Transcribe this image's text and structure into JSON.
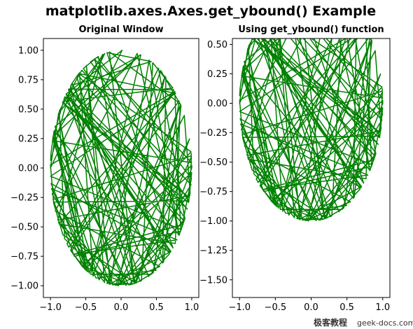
{
  "figure_title": "matplotlib.axes.Axes.get_ybound() Example",
  "watermark": {
    "brand": "极客教程",
    "site": "geek-docs.com"
  },
  "colors": {
    "line": "#008000",
    "axes_edge": "#000000",
    "background": "#ffffff"
  },
  "chart_data": [
    {
      "type": "line",
      "title": "Original Window",
      "xlabel": "",
      "ylabel": "",
      "xlim": [
        -1.1,
        1.1
      ],
      "ylim": [
        -1.1,
        1.1
      ],
      "xticks": [
        -1.0,
        -0.5,
        0.0,
        0.5,
        1.0
      ],
      "xtick_labels": [
        "−1.0",
        "−0.5",
        "0.0",
        "0.5",
        "1.0"
      ],
      "yticks": [
        -1.0,
        -0.75,
        -0.5,
        -0.25,
        0.0,
        0.25,
        0.5,
        0.75,
        1.0
      ],
      "ytick_labels": [
        "−1.00",
        "−0.75",
        "−0.50",
        "−0.25",
        "0.00",
        "0.25",
        "0.50",
        "0.75",
        "1.00"
      ],
      "grid": false,
      "series": [
        {
          "color": "#008000",
          "description": "random chords connecting points on the unit circle",
          "n_points": 150
        }
      ]
    },
    {
      "type": "line",
      "title": "Using get_ybound() function",
      "xlabel": "",
      "ylabel": "",
      "xlim": [
        -1.1,
        1.1
      ],
      "ylim": [
        -1.65,
        0.55
      ],
      "xticks": [
        -1.0,
        -0.5,
        0.0,
        0.5,
        1.0
      ],
      "xtick_labels": [
        "−1.0",
        "−0.5",
        "0.0",
        "0.5",
        "1.0"
      ],
      "yticks": [
        -1.5,
        -1.25,
        -1.0,
        -0.75,
        -0.5,
        -0.25,
        0.0,
        0.25,
        0.5
      ],
      "ytick_labels": [
        "−1.50",
        "−1.25",
        "−1.00",
        "−0.75",
        "−0.50",
        "−0.25",
        "0.00",
        "0.25",
        "0.50"
      ],
      "grid": false,
      "series": [
        {
          "color": "#008000",
          "description": "same random chords on the unit circle, view shifted down",
          "n_points": 150
        }
      ]
    }
  ]
}
